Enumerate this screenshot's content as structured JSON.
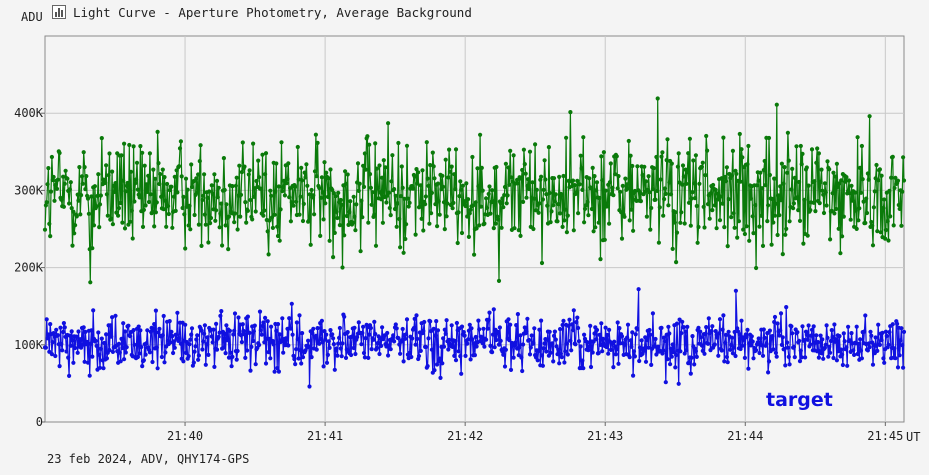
{
  "title": "Light Curve - Aperture Photometry, Average Background",
  "footer": "23 feb 2024, ADV, QHY174-GPS",
  "chart_data": {
    "type": "line",
    "title": "Light Curve - Aperture Photometry, Average Background",
    "xlabel": "UT",
    "ylabel": "ADU",
    "x_tick_labels": [
      "21:40",
      "21:41",
      "21:42",
      "21:43",
      "21:44",
      "21:45"
    ],
    "x_ticks_seconds_after_2139": [
      60,
      120,
      180,
      240,
      300,
      360
    ],
    "x_range_seconds_after_2139": [
      0,
      368
    ],
    "y_tick_labels": [
      "0",
      "100K",
      "200K",
      "300K",
      "400K"
    ],
    "y_ticks": [
      0,
      100000,
      200000,
      300000,
      400000
    ],
    "ylim": [
      0,
      500000
    ],
    "grid": true,
    "legend": "bottom-right",
    "series": [
      {
        "name": "",
        "color": "#0a7a0a",
        "n_points": 1000,
        "mean": 295000,
        "spread": 45000,
        "clip": [
          180000,
          420000
        ],
        "notable_points": [
          {
            "x": 262.5,
            "y": 419000
          },
          {
            "x": 313.5,
            "y": 411000
          },
          {
            "x": 19.4,
            "y": 181000
          }
        ]
      },
      {
        "name": "target",
        "color": "#1010e0",
        "n_points": 1000,
        "mean": 103000,
        "spread": 22000,
        "clip": [
          45000,
          172000
        ],
        "notable_points": [
          {
            "x": 254.3,
            "y": 172000
          },
          {
            "x": 296.0,
            "y": 170000
          },
          {
            "x": 113.3,
            "y": 46000
          }
        ]
      }
    ]
  }
}
